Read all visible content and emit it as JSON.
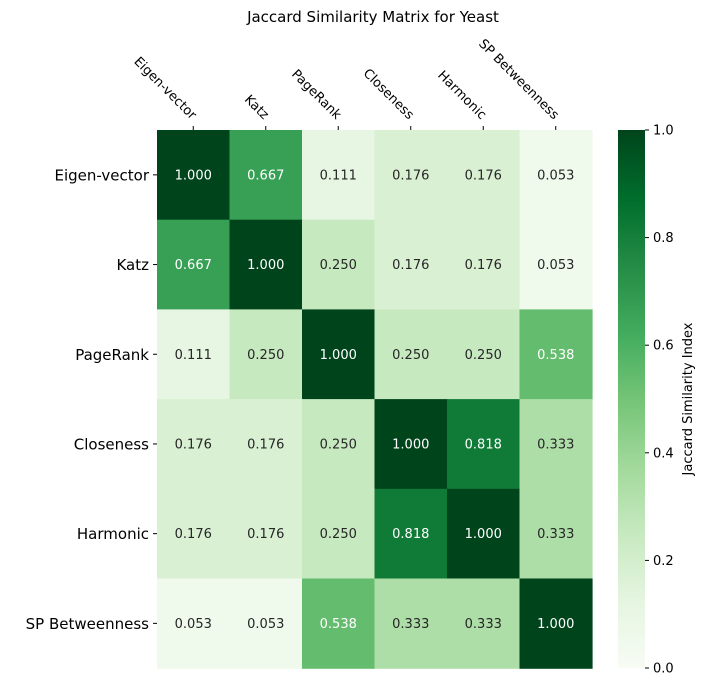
{
  "chart_data": {
    "type": "heatmap",
    "title": "Jaccard Similarity Matrix for Yeast",
    "row_labels": [
      "Eigen-vector",
      "Katz",
      "PageRank",
      "Closeness",
      "Harmonic",
      "SP Betweenness"
    ],
    "col_labels": [
      "Eigen-vector",
      "Katz",
      "PageRank",
      "Closeness",
      "Harmonic",
      "SP Betweenness"
    ],
    "values": [
      [
        1.0,
        0.667,
        0.111,
        0.176,
        0.176,
        0.053
      ],
      [
        0.667,
        1.0,
        0.25,
        0.176,
        0.176,
        0.053
      ],
      [
        0.111,
        0.25,
        1.0,
        0.25,
        0.25,
        0.538
      ],
      [
        0.176,
        0.176,
        0.25,
        1.0,
        0.818,
        0.333
      ],
      [
        0.176,
        0.176,
        0.25,
        0.818,
        1.0,
        0.333
      ],
      [
        0.053,
        0.053,
        0.538,
        0.333,
        0.333,
        1.0
      ]
    ],
    "value_labels": [
      [
        "1.000",
        "0.667",
        "0.111",
        "0.176",
        "0.176",
        "0.053"
      ],
      [
        "0.667",
        "1.000",
        "0.250",
        "0.176",
        "0.176",
        "0.053"
      ],
      [
        "0.111",
        "0.250",
        "1.000",
        "0.250",
        "0.250",
        "0.538"
      ],
      [
        "0.176",
        "0.176",
        "0.250",
        "1.000",
        "0.818",
        "0.333"
      ],
      [
        "0.176",
        "0.176",
        "0.250",
        "0.818",
        "1.000",
        "0.333"
      ],
      [
        "0.053",
        "0.053",
        "0.538",
        "0.333",
        "0.333",
        "1.000"
      ]
    ],
    "colorbar": {
      "label": "Jaccard Similarity Index",
      "range": [
        0,
        1
      ],
      "ticks": [
        0.0,
        0.2,
        0.4,
        0.6,
        0.8,
        1.0
      ],
      "tick_labels": [
        "0.0",
        "0.2",
        "0.4",
        "0.6",
        "0.8",
        "1.0"
      ]
    },
    "colormap": "Greens",
    "colormap_stops": [
      "#f7fcf5",
      "#e5f5e0",
      "#c7e9c0",
      "#a1d99b",
      "#74c476",
      "#41ab5d",
      "#238b45",
      "#006d2c",
      "#00441b"
    ],
    "x_tick_position": "top"
  }
}
